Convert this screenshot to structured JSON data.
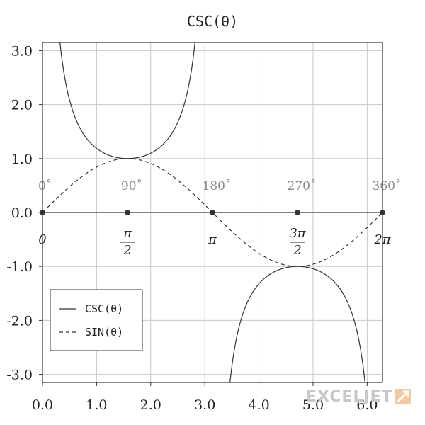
{
  "chart_data": {
    "type": "line",
    "title": "CSC(θ)",
    "xlabel": "",
    "ylabel": "",
    "xlim": [
      0,
      6.2832
    ],
    "ylim": [
      -3.15,
      3.15
    ],
    "grid": true,
    "legend_position": "bottom-left",
    "x_ticks": [
      0,
      1,
      2,
      3,
      4,
      5,
      6
    ],
    "x_tick_labels": [
      "0.0",
      "1.0",
      "2.0",
      "3.0",
      "4.0",
      "5.0",
      "6.0"
    ],
    "y_ticks": [
      3,
      2,
      1,
      0,
      -1,
      -2,
      -3
    ],
    "y_tick_labels": [
      "3.0",
      "2.0",
      "1.0",
      "0.0",
      "-1.0",
      "-2.0",
      "-3.0"
    ],
    "axis_markers": [
      {
        "x": 0,
        "degree_label": "0˚",
        "radian_label": "0"
      },
      {
        "x": 1.5708,
        "degree_label": "90˚",
        "radian_num": "π",
        "radian_den": "2"
      },
      {
        "x": 3.1416,
        "degree_label": "180˚",
        "radian_label": "π"
      },
      {
        "x": 4.7124,
        "degree_label": "270˚",
        "radian_num": "3π",
        "radian_den": "2"
      },
      {
        "x": 6.2832,
        "degree_label": "360˚",
        "radian_label": "2π"
      }
    ],
    "series": [
      {
        "name": "CSC(θ)",
        "function": "csc",
        "style": "solid",
        "color": "#333333"
      },
      {
        "name": "SIN(θ)",
        "function": "sin",
        "style": "dashed",
        "color": "#333333"
      }
    ]
  },
  "watermark": {
    "text": "EXCELJET",
    "color": "#c8c8c8"
  }
}
